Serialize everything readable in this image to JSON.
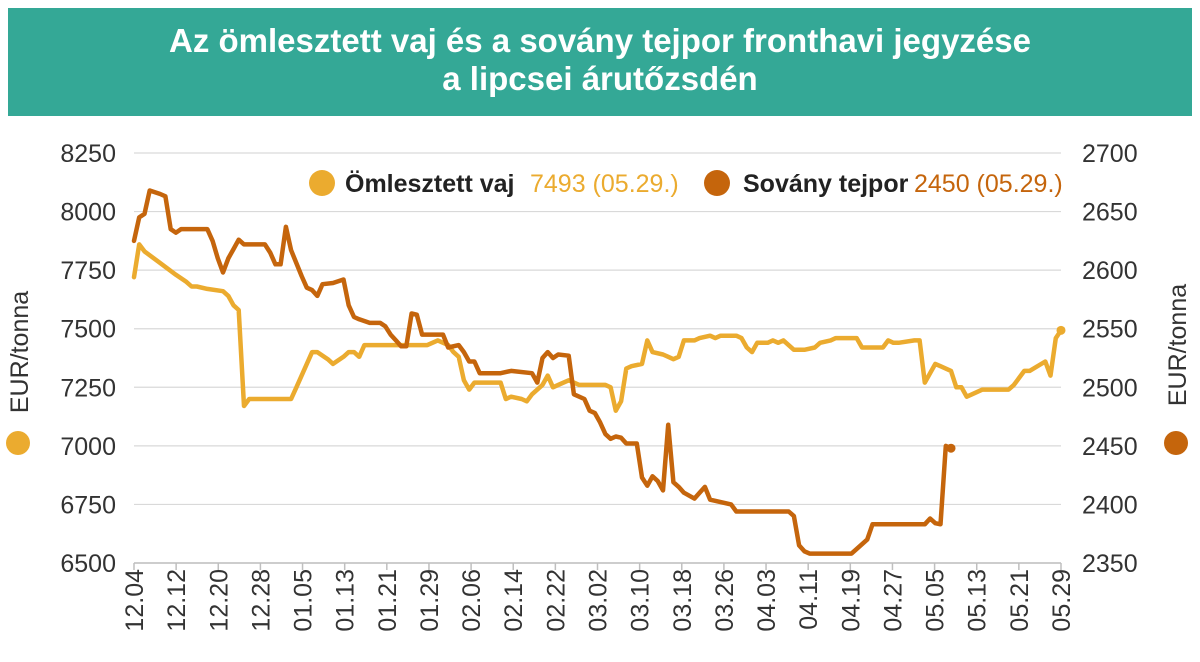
{
  "header": {
    "title_line1": "Az ömlesztett vaj és a sovány tejpor fronthavi jegyzése",
    "title_line2": "a lipcsei árutőzsdén"
  },
  "colors": {
    "title_bg": "#34a896",
    "butter": "#ebab2f",
    "smp": "#c5650c",
    "grid": "#d9d9d9",
    "text": "#333333"
  },
  "chart_data": {
    "type": "line",
    "title": "Az ömlesztett vaj és a sovány tejpor fronthavi jegyzése a lipcsei árutőzsdén",
    "ylabel_left": "EUR/tonna",
    "ylabel_right": "EUR/tonna",
    "ylim_left": [
      6500,
      8250
    ],
    "yticks_left": [
      "8250",
      "8000",
      "7750",
      "7500",
      "7250",
      "7000",
      "6750",
      "6500"
    ],
    "ylim_right": [
      2350,
      2700
    ],
    "yticks_right": [
      "2700",
      "2650",
      "2600",
      "2550",
      "2500",
      "2450",
      "2400",
      "2350"
    ],
    "xticks": [
      "12.04",
      "12.12",
      "12.20",
      "12.28",
      "01.05",
      "01.13",
      "01.21",
      "01.29",
      "02.06",
      "02.14",
      "02.22",
      "03.02",
      "03.10",
      "03.18",
      "03.26",
      "04.03",
      "04.11",
      "04.19",
      "04.27",
      "05.05",
      "05.13",
      "05.21",
      "05.29"
    ],
    "grid": true,
    "legend_position": "top",
    "series": [
      {
        "name": "Ömlesztett vaj",
        "axis": "left",
        "last_value_label": "7493 (05.29.)",
        "points": [
          [
            0,
            7720
          ],
          [
            1,
            7860
          ],
          [
            2,
            7830
          ],
          [
            5,
            7780
          ],
          [
            8,
            7730
          ],
          [
            10,
            7700
          ],
          [
            11,
            7680
          ],
          [
            12,
            7680
          ],
          [
            14,
            7670
          ],
          [
            17,
            7660
          ],
          [
            18,
            7640
          ],
          [
            19,
            7600
          ],
          [
            20,
            7580
          ],
          [
            21,
            7170
          ],
          [
            22,
            7200
          ],
          [
            25,
            7200
          ],
          [
            30,
            7200
          ],
          [
            31,
            7250
          ],
          [
            34,
            7400
          ],
          [
            35,
            7400
          ],
          [
            37,
            7370
          ],
          [
            38,
            7350
          ],
          [
            40,
            7380
          ],
          [
            41,
            7400
          ],
          [
            42,
            7400
          ],
          [
            43,
            7380
          ],
          [
            44,
            7430
          ],
          [
            48,
            7430
          ],
          [
            53,
            7430
          ],
          [
            56,
            7430
          ],
          [
            58,
            7450
          ],
          [
            60,
            7430
          ],
          [
            61,
            7400
          ],
          [
            62,
            7380
          ],
          [
            63,
            7280
          ],
          [
            64,
            7240
          ],
          [
            65,
            7270
          ],
          [
            67,
            7270
          ],
          [
            70,
            7270
          ],
          [
            71,
            7200
          ],
          [
            72,
            7210
          ],
          [
            74,
            7200
          ],
          [
            75,
            7190
          ],
          [
            76,
            7220
          ],
          [
            78,
            7260
          ],
          [
            79,
            7300
          ],
          [
            80,
            7250
          ],
          [
            81,
            7260
          ],
          [
            83,
            7280
          ],
          [
            85,
            7260
          ],
          [
            87,
            7260
          ],
          [
            90,
            7260
          ],
          [
            91,
            7250
          ],
          [
            92,
            7150
          ],
          [
            93,
            7190
          ],
          [
            94,
            7330
          ],
          [
            95,
            7340
          ],
          [
            97,
            7350
          ],
          [
            98,
            7450
          ],
          [
            99,
            7400
          ],
          [
            101,
            7390
          ],
          [
            102,
            7380
          ],
          [
            103,
            7370
          ],
          [
            104,
            7380
          ],
          [
            105,
            7450
          ],
          [
            107,
            7450
          ],
          [
            108,
            7460
          ],
          [
            110,
            7470
          ],
          [
            111,
            7460
          ],
          [
            112,
            7470
          ],
          [
            115,
            7470
          ],
          [
            116,
            7460
          ],
          [
            117,
            7420
          ],
          [
            118,
            7400
          ],
          [
            119,
            7440
          ],
          [
            121,
            7440
          ],
          [
            122,
            7450
          ],
          [
            123,
            7440
          ],
          [
            124,
            7450
          ],
          [
            126,
            7410
          ],
          [
            128,
            7410
          ],
          [
            130,
            7420
          ],
          [
            131,
            7440
          ],
          [
            133,
            7450
          ],
          [
            134,
            7460
          ],
          [
            138,
            7460
          ],
          [
            139,
            7420
          ],
          [
            141,
            7420
          ],
          [
            143,
            7420
          ],
          [
            144,
            7450
          ],
          [
            145,
            7440
          ],
          [
            146,
            7440
          ],
          [
            149,
            7450
          ],
          [
            150,
            7450
          ],
          [
            151,
            7270
          ],
          [
            152,
            7310
          ],
          [
            153,
            7350
          ],
          [
            154,
            7340
          ],
          [
            156,
            7320
          ],
          [
            157,
            7250
          ],
          [
            158,
            7250
          ],
          [
            159,
            7210
          ],
          [
            160,
            7220
          ],
          [
            162,
            7240
          ],
          [
            165,
            7240
          ],
          [
            167,
            7240
          ],
          [
            168,
            7260
          ],
          [
            170,
            7320
          ],
          [
            171,
            7320
          ],
          [
            174,
            7360
          ],
          [
            175,
            7300
          ],
          [
            176,
            7460
          ],
          [
            177,
            7493
          ]
        ]
      },
      {
        "name": "Sovány tejpor",
        "axis": "right",
        "last_value_label": "2450 (05.29.)",
        "points": [
          [
            0,
            2625
          ],
          [
            1,
            2645
          ],
          [
            2,
            2648
          ],
          [
            3,
            2668
          ],
          [
            5,
            2665
          ],
          [
            6,
            2663
          ],
          [
            7,
            2635
          ],
          [
            8,
            2632
          ],
          [
            9,
            2635
          ],
          [
            10,
            2635
          ],
          [
            14,
            2635
          ],
          [
            15,
            2625
          ],
          [
            16,
            2610
          ],
          [
            17,
            2598
          ],
          [
            18,
            2610
          ],
          [
            19,
            2618
          ],
          [
            20,
            2626
          ],
          [
            21,
            2622
          ],
          [
            25,
            2622
          ],
          [
            26,
            2615
          ],
          [
            27,
            2605
          ],
          [
            28,
            2605
          ],
          [
            29,
            2637
          ],
          [
            30,
            2617
          ],
          [
            32,
            2595
          ],
          [
            33,
            2585
          ],
          [
            34,
            2583
          ],
          [
            35,
            2578
          ],
          [
            36,
            2588
          ],
          [
            38,
            2589
          ],
          [
            40,
            2592
          ],
          [
            41,
            2570
          ],
          [
            42,
            2560
          ],
          [
            43,
            2558
          ],
          [
            45,
            2555
          ],
          [
            47,
            2555
          ],
          [
            48,
            2552
          ],
          [
            49,
            2545
          ],
          [
            50,
            2540
          ],
          [
            51,
            2535
          ],
          [
            52,
            2535
          ],
          [
            53,
            2563
          ],
          [
            54,
            2562
          ],
          [
            55,
            2545
          ],
          [
            57,
            2545
          ],
          [
            59,
            2545
          ],
          [
            60,
            2534
          ],
          [
            62,
            2536
          ],
          [
            63,
            2530
          ],
          [
            64,
            2522
          ],
          [
            65,
            2522
          ],
          [
            66,
            2512
          ],
          [
            70,
            2512
          ],
          [
            72,
            2514
          ],
          [
            76,
            2512
          ],
          [
            77,
            2504
          ],
          [
            78,
            2525
          ],
          [
            79,
            2530
          ],
          [
            80,
            2525
          ],
          [
            81,
            2528
          ],
          [
            83,
            2527
          ],
          [
            84,
            2494
          ],
          [
            86,
            2490
          ],
          [
            87,
            2480
          ],
          [
            88,
            2478
          ],
          [
            89,
            2470
          ],
          [
            90,
            2460
          ],
          [
            91,
            2456
          ],
          [
            92,
            2458
          ],
          [
            93,
            2457
          ],
          [
            94,
            2452
          ],
          [
            96,
            2452
          ],
          [
            97,
            2423
          ],
          [
            98,
            2416
          ],
          [
            99,
            2424
          ],
          [
            100,
            2420
          ],
          [
            101,
            2412
          ],
          [
            102,
            2468
          ],
          [
            103,
            2419
          ],
          [
            104,
            2415
          ],
          [
            105,
            2410
          ],
          [
            107,
            2405
          ],
          [
            108,
            2410
          ],
          [
            109,
            2415
          ],
          [
            110,
            2404
          ],
          [
            112,
            2402
          ],
          [
            114,
            2400
          ],
          [
            115,
            2394
          ],
          [
            125,
            2394
          ],
          [
            126,
            2390
          ],
          [
            127,
            2365
          ],
          [
            128,
            2360
          ],
          [
            129,
            2358
          ],
          [
            137,
            2358
          ],
          [
            138,
            2362
          ],
          [
            140,
            2370
          ],
          [
            141,
            2383
          ],
          [
            151,
            2383
          ],
          [
            152,
            2388
          ],
          [
            153,
            2384
          ],
          [
            154,
            2383
          ],
          [
            155,
            2450
          ],
          [
            156,
            2448
          ]
        ]
      }
    ]
  }
}
